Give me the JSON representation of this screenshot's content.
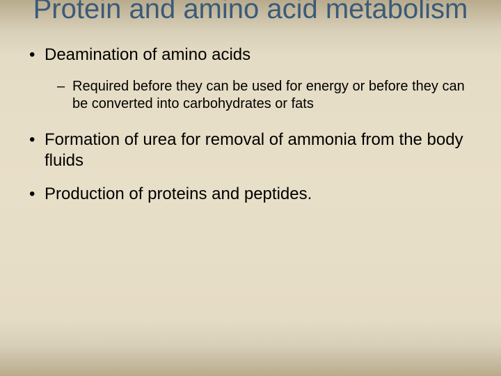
{
  "slide": {
    "title": "Protein and amino acid metabolism",
    "title_color": "#3a5a7a",
    "title_fontsize": 40,
    "body_color": "#000000",
    "background_gradient": [
      "#b8ab8c",
      "#d8cfb8",
      "#e5dcc5",
      "#e8dfc8",
      "#e5dcc5",
      "#d8cfb8",
      "#b8ab8c"
    ],
    "bullets": [
      {
        "level": 1,
        "text": "Deamination of amino acids",
        "children": [
          {
            "level": 2,
            "text": "Required before they can be used for energy or before they can be converted into carbohydrates or fats"
          }
        ]
      },
      {
        "level": 1,
        "text": "Formation of urea for removal of ammonia from the body fluids",
        "children": []
      },
      {
        "level": 1,
        "text": "Production of proteins and peptides.",
        "children": []
      }
    ]
  }
}
